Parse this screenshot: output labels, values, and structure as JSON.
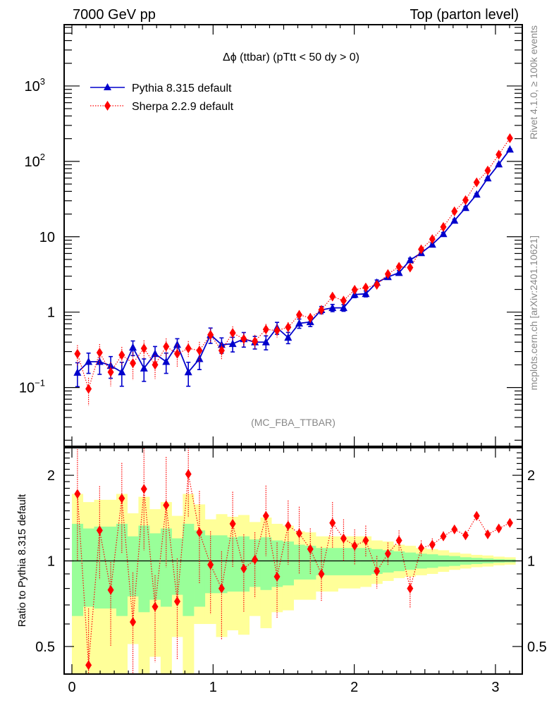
{
  "header": {
    "left": "7000 GeV pp",
    "right": "Top (parton level)"
  },
  "side_labels": {
    "rivet": "Rivet 4.1.0, ≥ 100k events",
    "mcplots": "mcplots.cern.ch [arXiv:2401.10621]"
  },
  "chart_data": [
    {
      "type": "line",
      "panel": "main",
      "title": "Δϕ (ttbar) (pTtt < 50 dy > 0)",
      "analysis_label": "(MC_FBA_TTBAR)",
      "xlabel": "",
      "ylabel": "",
      "yscale": "log",
      "xlim": [
        -0.055,
        3.19
      ],
      "ylim": [
        0.0166,
        6500
      ],
      "x_ticks": [
        0,
        1,
        2,
        3
      ],
      "y_ticks": [
        {
          "value": 0.1,
          "label": "10^-1"
        },
        {
          "value": 1,
          "label": "1"
        },
        {
          "value": 10,
          "label": "10"
        },
        {
          "value": 100,
          "label": "10^2"
        },
        {
          "value": 1000,
          "label": "10^3"
        }
      ],
      "legend_position": "top-left",
      "bin_edges_range": [
        0,
        3.14159
      ],
      "n_bins": 40,
      "series": [
        {
          "name": "Pythia 8.315 default",
          "color": "#0000cc",
          "marker": "triangle",
          "line": "solid",
          "values": [
            0.158,
            0.22,
            0.22,
            0.195,
            0.16,
            0.34,
            0.18,
            0.28,
            0.22,
            0.37,
            0.16,
            0.24,
            0.5,
            0.37,
            0.38,
            0.44,
            0.4,
            0.4,
            0.62,
            0.46,
            0.71,
            0.74,
            1.07,
            1.14,
            1.14,
            1.71,
            1.75,
            2.47,
            2.93,
            3.33,
            4.9,
            6.1,
            7.9,
            10.9,
            16.4,
            24.2,
            36.4,
            59.7,
            91.6,
            144
          ],
          "rel_errors": [
            0.35,
            0.3,
            0.32,
            0.32,
            0.35,
            0.22,
            0.33,
            0.25,
            0.3,
            0.2,
            0.35,
            0.28,
            0.23,
            0.23,
            0.22,
            0.22,
            0.19,
            0.21,
            0.18,
            0.17,
            0.14,
            0.13,
            0.11,
            0.11,
            0.1,
            0.09,
            0.09,
            0.08,
            0.07,
            0.07,
            0.06,
            0.06,
            0.05,
            0.045,
            0.04,
            0.035,
            0.03,
            0.025,
            0.02,
            0.02
          ]
        },
        {
          "name": "Sherpa 2.2.9 default",
          "color": "#ff0000",
          "marker": "diamond",
          "line": "dotted",
          "values": [
            0.28,
            0.096,
            0.29,
            0.16,
            0.27,
            0.21,
            0.33,
            0.2,
            0.35,
            0.28,
            0.33,
            0.31,
            0.5,
            0.31,
            0.53,
            0.44,
            0.41,
            0.59,
            0.57,
            0.63,
            0.92,
            0.84,
            1.07,
            1.61,
            1.42,
            1.98,
            2.12,
            2.3,
            3.2,
            4.0,
            3.9,
            6.8,
            9.3,
            13.5,
            21.7,
            30.6,
            52.6,
            75.6,
            123,
            203
          ],
          "rel_errors": [
            0.3,
            0.4,
            0.3,
            0.35,
            0.28,
            0.4,
            0.28,
            0.35,
            0.28,
            0.33,
            0.25,
            0.3,
            0.22,
            0.25,
            0.22,
            0.22,
            0.22,
            0.18,
            0.2,
            0.17,
            0.15,
            0.15,
            0.14,
            0.12,
            0.12,
            0.1,
            0.1,
            0.09,
            0.08,
            0.08,
            0.07,
            0.06,
            0.05,
            0.045,
            0.04,
            0.035,
            0.03,
            0.025,
            0.02,
            0.02
          ]
        }
      ]
    },
    {
      "type": "line",
      "panel": "ratio",
      "ylabel": "Ratio to Pythia 8.315 default",
      "xlabel": "",
      "yscale": "log",
      "xlim": [
        -0.055,
        3.19
      ],
      "ylim": [
        0.4,
        2.5
      ],
      "x_ticks": [
        0,
        1,
        2,
        3
      ],
      "y_ticks": [
        0.5,
        1,
        2
      ],
      "reference": 1,
      "bands": {
        "inner_color": "#99ff99",
        "outer_color": "#ffff99",
        "inner_up": [
          1.35,
          1.3,
          1.32,
          1.32,
          1.35,
          1.22,
          1.33,
          1.25,
          1.3,
          1.2,
          1.35,
          1.28,
          1.23,
          1.23,
          1.21,
          1.22,
          1.19,
          1.21,
          1.18,
          1.17,
          1.14,
          1.13,
          1.11,
          1.11,
          1.11,
          1.11,
          1.11,
          1.1,
          1.09,
          1.08,
          1.07,
          1.06,
          1.055,
          1.045,
          1.04,
          1.03,
          1.025,
          1.02,
          1.015,
          1.012
        ],
        "inner_down": [
          0.64,
          0.69,
          0.68,
          0.68,
          0.64,
          0.75,
          0.66,
          0.73,
          0.69,
          0.76,
          0.64,
          0.69,
          0.77,
          0.77,
          0.78,
          0.78,
          0.81,
          0.79,
          0.81,
          0.82,
          0.86,
          0.86,
          0.89,
          0.89,
          0.89,
          0.89,
          0.89,
          0.9,
          0.91,
          0.92,
          0.93,
          0.94,
          0.945,
          0.955,
          0.96,
          0.97,
          0.975,
          0.98,
          0.985,
          0.988
        ],
        "outer_up": [
          1.72,
          1.61,
          1.64,
          1.64,
          1.72,
          1.47,
          1.68,
          1.52,
          1.61,
          1.44,
          1.72,
          1.58,
          1.4,
          1.46,
          1.43,
          1.45,
          1.37,
          1.42,
          1.35,
          1.33,
          1.27,
          1.26,
          1.22,
          1.22,
          1.22,
          1.22,
          1.22,
          1.18,
          1.17,
          1.14,
          1.13,
          1.11,
          1.1,
          1.09,
          1.07,
          1.06,
          1.05,
          1.045,
          1.035,
          1.03
        ],
        "outer_down": [
          0.3,
          0.3,
          0.3,
          0.3,
          0.3,
          0.51,
          0.3,
          0.46,
          0.3,
          0.54,
          0.3,
          0.6,
          0.6,
          0.54,
          0.57,
          0.55,
          0.64,
          0.58,
          0.66,
          0.67,
          0.73,
          0.73,
          0.78,
          0.78,
          0.8,
          0.8,
          0.81,
          0.83,
          0.85,
          0.87,
          0.88,
          0.89,
          0.9,
          0.915,
          0.93,
          0.94,
          0.95,
          0.955,
          0.965,
          0.97
        ]
      },
      "series": [
        {
          "name": "Sherpa 2.2.9 default / Pythia 8.315 default",
          "color": "#ff0000",
          "marker": "diamond",
          "line": "dotted",
          "values": [
            1.72,
            0.43,
            1.28,
            0.79,
            1.66,
            0.61,
            1.79,
            0.69,
            1.57,
            0.72,
            2.02,
            1.26,
            0.97,
            0.8,
            1.35,
            0.94,
            1.01,
            1.44,
            0.88,
            1.33,
            1.25,
            1.1,
            0.9,
            1.36,
            1.2,
            1.13,
            1.18,
            0.92,
            1.06,
            1.18,
            0.8,
            1.11,
            1.14,
            1.22,
            1.29,
            1.23,
            1.44,
            1.24,
            1.3,
            1.36
          ],
          "err_up": [
            0.75,
            0.25,
            0.55,
            0.2,
            0.55,
            0.3,
            0.7,
            0.2,
            0.75,
            0.3,
            0.75,
            0.5,
            0.3,
            0.28,
            0.4,
            0.3,
            0.25,
            0.4,
            0.28,
            0.3,
            0.3,
            0.2,
            0.22,
            0.25,
            0.2,
            0.16,
            0.15,
            0.12,
            0.1,
            0.1,
            0.08,
            0.07,
            0.06,
            0.05,
            0.04,
            0.04,
            0.03,
            0.03,
            0.02,
            0.02
          ],
          "err_down": [
            0.72,
            0.13,
            0.42,
            0.29,
            0.6,
            0.26,
            0.7,
            0.25,
            0.62,
            0.27,
            0.6,
            0.43,
            0.32,
            0.27,
            0.4,
            0.28,
            0.27,
            0.4,
            0.25,
            0.36,
            0.35,
            0.2,
            0.18,
            0.25,
            0.2,
            0.16,
            0.15,
            0.12,
            0.1,
            0.1,
            0.12,
            0.07,
            0.06,
            0.05,
            0.04,
            0.04,
            0.03,
            0.03,
            0.02,
            0.02
          ]
        }
      ]
    }
  ]
}
